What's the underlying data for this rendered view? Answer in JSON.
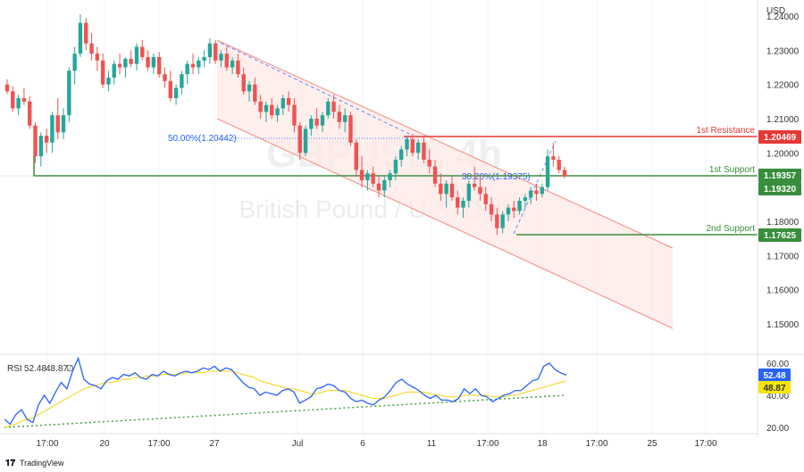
{
  "currency_label": "USD",
  "watermark": {
    "symbol": "GBPUSD, 4h",
    "name": "British Pound / U.S. Dollar"
  },
  "branding": {
    "text": "TradingView"
  },
  "colors": {
    "bull": "#26a69a",
    "bear": "#ef5350",
    "resistance": "#e53935",
    "support": "#388e3c",
    "channel": "#f28b82",
    "channel_fill": "#fde8e6",
    "fib": "#2962ff",
    "rsi": "#2962ff",
    "rsi_ma": "#f5d20a",
    "rsi_trend": "#43a047",
    "tag_yellow": "#f5e50a",
    "tag_blue": "#2962ff"
  },
  "chart_data": {
    "type": "candlestick",
    "symbol": "GBPUSD",
    "timeframe": "4h",
    "y_axis": {
      "ticks": [
        "1.24000",
        "1.23000",
        "1.22000",
        "1.21000",
        "1.20000",
        "1.19000",
        "1.18000",
        "1.17000",
        "1.16000",
        "1.15000"
      ],
      "range": [
        1.143,
        1.242
      ]
    },
    "x_axis": {
      "ticks": [
        "17:00",
        "20",
        "17:00",
        "27",
        "Jul",
        "6",
        "11",
        "17:00",
        "18",
        "17:00",
        "25",
        "17:00"
      ]
    },
    "levels": [
      {
        "label": "1st Resistance",
        "value": 1.20469,
        "tag": "1.20469",
        "kind": "resistance"
      },
      {
        "label": "1st Support",
        "value": 1.19357,
        "tag": "1.19357",
        "kind": "support"
      },
      {
        "label": "",
        "value": 1.1932,
        "tag": "1.19320",
        "kind": "current"
      },
      {
        "label": "2nd Support",
        "value": 1.17625,
        "tag": "1.17625",
        "kind": "support"
      }
    ],
    "fib_labels": [
      {
        "text": "50.00%(1.20442)",
        "value": 1.20442
      },
      {
        "text": "38.20%(1.19375)",
        "value": 1.19375
      }
    ],
    "candles": [
      [
        1.22,
        1.2215,
        1.2172,
        1.218
      ],
      [
        1.218,
        1.2195,
        1.212,
        1.213
      ],
      [
        1.213,
        1.217,
        1.211,
        1.216
      ],
      [
        1.216,
        1.219,
        1.214,
        1.215
      ],
      [
        1.215,
        1.2165,
        1.207,
        1.208
      ],
      [
        1.208,
        1.209,
        1.197,
        1.199
      ],
      [
        1.199,
        1.206,
        1.196,
        1.205
      ],
      [
        1.205,
        1.207,
        1.2,
        1.203
      ],
      [
        1.203,
        1.212,
        1.2,
        1.211
      ],
      [
        1.211,
        1.216,
        1.204,
        1.206
      ],
      [
        1.206,
        1.213,
        1.204,
        1.211
      ],
      [
        1.211,
        1.225,
        1.209,
        1.224
      ],
      [
        1.224,
        1.231,
        1.22,
        1.229
      ],
      [
        1.229,
        1.2405,
        1.228,
        1.238
      ],
      [
        1.238,
        1.2395,
        1.23,
        1.232
      ],
      [
        1.232,
        1.235,
        1.227,
        1.229
      ],
      [
        1.229,
        1.231,
        1.224,
        1.227
      ],
      [
        1.227,
        1.229,
        1.219,
        1.22
      ],
      [
        1.22,
        1.224,
        1.218,
        1.222
      ],
      [
        1.222,
        1.227,
        1.22,
        1.226
      ],
      [
        1.226,
        1.229,
        1.223,
        1.225
      ],
      [
        1.225,
        1.228,
        1.222,
        1.2275
      ],
      [
        1.2275,
        1.23,
        1.225,
        1.226
      ],
      [
        1.226,
        1.232,
        1.224,
        1.231
      ],
      [
        1.231,
        1.233,
        1.227,
        1.228
      ],
      [
        1.228,
        1.23,
        1.224,
        1.225
      ],
      [
        1.225,
        1.229,
        1.223,
        1.228
      ],
      [
        1.228,
        1.2295,
        1.222,
        1.223
      ],
      [
        1.223,
        1.225,
        1.219,
        1.221
      ],
      [
        1.221,
        1.224,
        1.215,
        1.216
      ],
      [
        1.216,
        1.22,
        1.214,
        1.219
      ],
      [
        1.219,
        1.224,
        1.217,
        1.223
      ],
      [
        1.223,
        1.227,
        1.22,
        1.226
      ],
      [
        1.226,
        1.229,
        1.223,
        1.225
      ],
      [
        1.225,
        1.228,
        1.223,
        1.227
      ],
      [
        1.227,
        1.23,
        1.225,
        1.228
      ],
      [
        1.228,
        1.2335,
        1.226,
        1.232
      ],
      [
        1.232,
        1.233,
        1.226,
        1.227
      ],
      [
        1.227,
        1.23,
        1.225,
        1.229
      ],
      [
        1.229,
        1.231,
        1.224,
        1.225
      ],
      [
        1.225,
        1.228,
        1.223,
        1.227
      ],
      [
        1.227,
        1.229,
        1.222,
        1.223
      ],
      [
        1.223,
        1.225,
        1.217,
        1.218
      ],
      [
        1.218,
        1.221,
        1.215,
        1.22
      ],
      [
        1.22,
        1.222,
        1.214,
        1.215
      ],
      [
        1.215,
        1.217,
        1.21,
        1.212
      ],
      [
        1.212,
        1.215,
        1.209,
        1.214
      ],
      [
        1.214,
        1.216,
        1.21,
        1.211
      ],
      [
        1.211,
        1.214,
        1.209,
        1.213
      ],
      [
        1.213,
        1.217,
        1.211,
        1.216
      ],
      [
        1.216,
        1.218,
        1.212,
        1.214
      ],
      [
        1.214,
        1.216,
        1.206,
        1.208
      ],
      [
        1.208,
        1.209,
        1.198,
        1.2
      ],
      [
        1.2,
        1.208,
        1.199,
        1.207
      ],
      [
        1.207,
        1.211,
        1.205,
        1.21
      ],
      [
        1.21,
        1.213,
        1.207,
        1.208
      ],
      [
        1.208,
        1.212,
        1.206,
        1.211
      ],
      [
        1.211,
        1.216,
        1.21,
        1.215
      ],
      [
        1.215,
        1.217,
        1.21,
        1.212
      ],
      [
        1.212,
        1.214,
        1.207,
        1.209
      ],
      [
        1.209,
        1.213,
        1.206,
        1.211
      ],
      [
        1.211,
        1.212,
        1.202,
        1.203
      ],
      [
        1.203,
        1.204,
        1.193,
        1.195
      ],
      [
        1.195,
        1.199,
        1.19,
        1.192
      ],
      [
        1.192,
        1.195,
        1.189,
        1.194
      ],
      [
        1.194,
        1.196,
        1.19,
        1.191
      ],
      [
        1.191,
        1.193,
        1.187,
        1.189
      ],
      [
        1.189,
        1.193,
        1.187,
        1.192
      ],
      [
        1.192,
        1.195,
        1.19,
        1.194
      ],
      [
        1.194,
        1.199,
        1.192,
        1.198
      ],
      [
        1.198,
        1.202,
        1.196,
        1.201
      ],
      [
        1.201,
        1.205,
        1.199,
        1.204
      ],
      [
        1.204,
        1.2055,
        1.199,
        1.2
      ],
      [
        1.2,
        1.204,
        1.198,
        1.203
      ],
      [
        1.203,
        1.2045,
        1.197,
        1.198
      ],
      [
        1.198,
        1.201,
        1.194,
        1.196
      ],
      [
        1.196,
        1.198,
        1.19,
        1.191
      ],
      [
        1.191,
        1.194,
        1.186,
        1.188
      ],
      [
        1.188,
        1.192,
        1.184,
        1.191
      ],
      [
        1.191,
        1.193,
        1.186,
        1.187
      ],
      [
        1.187,
        1.189,
        1.182,
        1.184
      ],
      [
        1.184,
        1.187,
        1.181,
        1.186
      ],
      [
        1.186,
        1.192,
        1.184,
        1.191
      ],
      [
        1.191,
        1.196,
        1.189,
        1.19
      ],
      [
        1.19,
        1.193,
        1.186,
        1.188
      ],
      [
        1.188,
        1.19,
        1.183,
        1.185
      ],
      [
        1.185,
        1.187,
        1.18,
        1.182
      ],
      [
        1.182,
        1.184,
        1.176,
        1.178
      ],
      [
        1.178,
        1.183,
        1.1765,
        1.182
      ],
      [
        1.182,
        1.185,
        1.18,
        1.184
      ],
      [
        1.184,
        1.186,
        1.181,
        1.183
      ],
      [
        1.183,
        1.187,
        1.182,
        1.186
      ],
      [
        1.186,
        1.188,
        1.184,
        1.187
      ],
      [
        1.187,
        1.19,
        1.185,
        1.189
      ],
      [
        1.189,
        1.191,
        1.186,
        1.188
      ],
      [
        1.188,
        1.191,
        1.187,
        1.19
      ],
      [
        1.19,
        1.201,
        1.189,
        1.199
      ],
      [
        1.199,
        1.203,
        1.196,
        1.198
      ],
      [
        1.198,
        1.199,
        1.194,
        1.195
      ],
      [
        1.195,
        1.196,
        1.1925,
        1.1932
      ]
    ],
    "rsi": {
      "label": "RSI",
      "value": "52.48",
      "ma_value": "48.87",
      "extra": "∅",
      "ticks": [
        "60.00",
        "40.00",
        "20.00"
      ],
      "range": [
        15,
        68
      ],
      "series": [
        25,
        22,
        28,
        31,
        25,
        23,
        34,
        40,
        35,
        42,
        48,
        44,
        55,
        63,
        50,
        47,
        46,
        44,
        49,
        51,
        50,
        53,
        52,
        54,
        51,
        50,
        53,
        52,
        55,
        53,
        52,
        54,
        55,
        54,
        55,
        57,
        56,
        58,
        55,
        57,
        56,
        52,
        48,
        45,
        44,
        40,
        42,
        41,
        40,
        43,
        44,
        42,
        35,
        37,
        39,
        44,
        45,
        47,
        46,
        43,
        42,
        38,
        36,
        37,
        35,
        34,
        37,
        39,
        43,
        48,
        50,
        47,
        45,
        43,
        40,
        38,
        40,
        37,
        37,
        36,
        38,
        44,
        41,
        44,
        40,
        39,
        36,
        38,
        40,
        41,
        43,
        43,
        46,
        49,
        50,
        58,
        60,
        56,
        54,
        52.48
      ],
      "ma_series": [
        20,
        21,
        22,
        24,
        25,
        26,
        28,
        30,
        32,
        34,
        36,
        38,
        40,
        42,
        44,
        45,
        46,
        47,
        48,
        48,
        49,
        50,
        50,
        51,
        51,
        52,
        52,
        52,
        53,
        53,
        53,
        53,
        54,
        54,
        54,
        54,
        55,
        55,
        55,
        55,
        55,
        54,
        53,
        52,
        51,
        49,
        48,
        47,
        46,
        45,
        44,
        44,
        43,
        42,
        41,
        41,
        42,
        43,
        43,
        43,
        43,
        42,
        41,
        40,
        39,
        38,
        38,
        38,
        39,
        40,
        41,
        42,
        42,
        42,
        42,
        41,
        40,
        40,
        39,
        39,
        39,
        40,
        40,
        40,
        40,
        40,
        39,
        39,
        39,
        40,
        40,
        41,
        42,
        43,
        44,
        45,
        46,
        47,
        48,
        48.87
      ],
      "trendline": [
        [
          0,
          20
        ],
        [
          0.84,
          40
        ]
      ]
    }
  }
}
